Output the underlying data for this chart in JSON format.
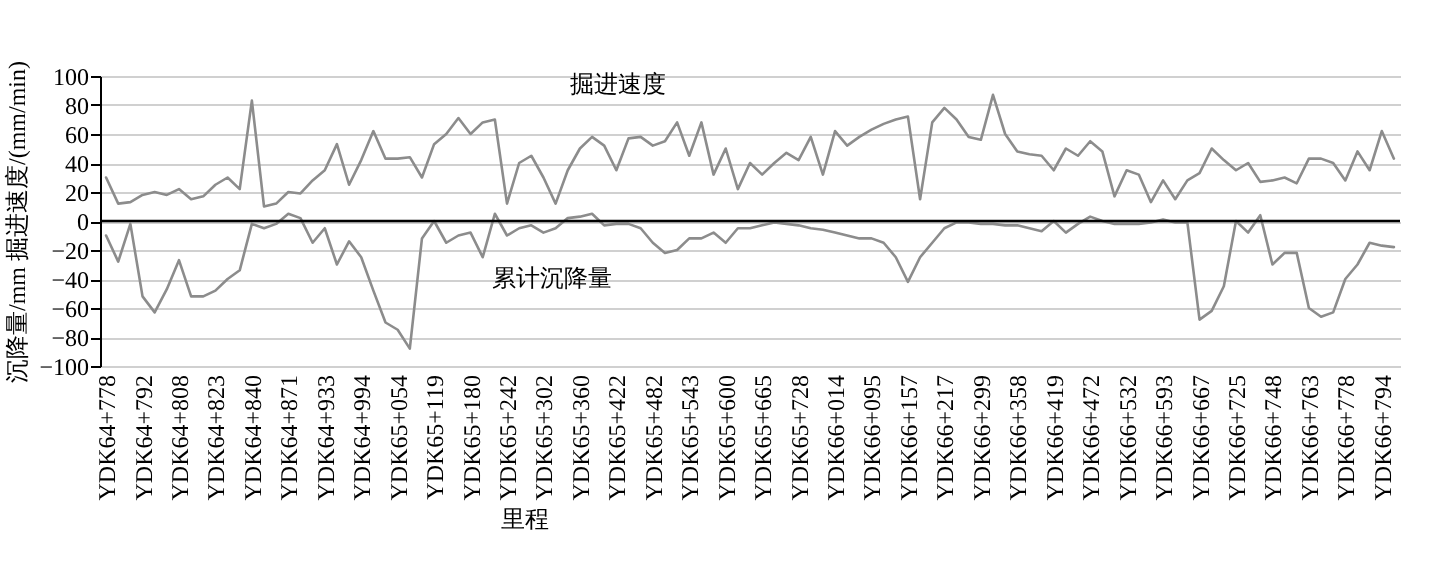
{
  "chart_data": {
    "type": "line",
    "xlabel": "里程",
    "ylabel": "沉降量/mm  掘进速度/(mm/min)",
    "categories": [
      "YDK64+778",
      null,
      null,
      "YDK64+792",
      null,
      null,
      "YDK64+808",
      null,
      null,
      "YDK64+823",
      null,
      null,
      "YDK64+840",
      null,
      null,
      "YDK64+871",
      null,
      null,
      "YDK64+933",
      null,
      null,
      "YDK64+994",
      null,
      null,
      "YDK65+054",
      null,
      null,
      "YDK65+119",
      null,
      null,
      "YDK65+180",
      null,
      null,
      "YDK65+242",
      null,
      null,
      "YDK65+302",
      null,
      null,
      "YDK65+360",
      null,
      null,
      "YDK65+422",
      null,
      null,
      "YDK65+482",
      null,
      null,
      "YDK65+543",
      null,
      null,
      "YDK65+600",
      null,
      null,
      "YDK65+665",
      null,
      null,
      "YDK65+728",
      null,
      null,
      "YDK66+014",
      null,
      null,
      "YDK66+095",
      null,
      null,
      "YDK66+157",
      null,
      null,
      "YDK66+217",
      null,
      null,
      "YDK66+299",
      null,
      null,
      "YDK66+358",
      null,
      null,
      "YDK66+419",
      null,
      null,
      "YDK66+472",
      null,
      null,
      "YDK66+532",
      null,
      null,
      "YDK66+593",
      null,
      null,
      "YDK66+667",
      null,
      null,
      "YDK66+725",
      null,
      null,
      "YDK66+748",
      null,
      null,
      "YDK66+763",
      null,
      null,
      "YDK66+778",
      null,
      null,
      "YDK66+794",
      null
    ],
    "series": [
      {
        "color": "#8c8c8c",
        "values": [
          30,
          12,
          13,
          18,
          20,
          18,
          22,
          15,
          17,
          25,
          30,
          22,
          83,
          10,
          12,
          20,
          19,
          28,
          35,
          53,
          25,
          42,
          62,
          43,
          43,
          44,
          30,
          53,
          60,
          71,
          60,
          68,
          70,
          12,
          40,
          45,
          30,
          12,
          35,
          50,
          58,
          52,
          35,
          57,
          58,
          52,
          55,
          68,
          45,
          68,
          32,
          50,
          22,
          40,
          32,
          40,
          47,
          42,
          58,
          32,
          62,
          52,
          58,
          63,
          67,
          70,
          72,
          15,
          68,
          78,
          70,
          58,
          56,
          87,
          60,
          48,
          46,
          45,
          35,
          50,
          45,
          55,
          48,
          17,
          35,
          32,
          13,
          28,
          15,
          28,
          33,
          50,
          42,
          35,
          40,
          27,
          28,
          30,
          26,
          43,
          43,
          40,
          28,
          48,
          35,
          62,
          43
        ]
      },
      {
        "color": "#8c8c8c",
        "values": [
          -10,
          -28,
          -2,
          -52,
          -63,
          -47,
          -27,
          -52,
          -52,
          -48,
          -40,
          -34,
          -2,
          -5,
          -2,
          5,
          2,
          -15,
          -5,
          -30,
          -14,
          -25,
          -48,
          -70,
          -75,
          -88,
          -12,
          0,
          -15,
          -10,
          -8,
          -25,
          5,
          -10,
          -5,
          -3,
          -8,
          -5,
          2,
          3,
          5,
          -3,
          -2,
          -2,
          -5,
          -15,
          -22,
          -20,
          -12,
          -12,
          -8,
          -15,
          -5,
          -5,
          -3,
          -1,
          -2,
          -3,
          -5,
          -6,
          -8,
          -10,
          -12,
          -12,
          -15,
          -25,
          -42,
          -25,
          -15,
          -5,
          -1,
          -1,
          -2,
          -2,
          -3,
          -3,
          -5,
          -7,
          0,
          -8,
          -2,
          3,
          0,
          -2,
          -2,
          -2,
          -1,
          1,
          -1,
          -1,
          -68,
          -62,
          -45,
          0,
          -8,
          4,
          -30,
          -22,
          -22,
          -60,
          -66,
          -63,
          -40,
          -30,
          -15,
          -17,
          -18
        ]
      }
    ],
    "annotations": [
      "掘进速度",
      "累计沉降量"
    ],
    "ylim": [
      -100,
      100
    ],
    "yticks": [
      -100,
      -80,
      -60,
      -40,
      -20,
      0,
      20,
      40,
      60,
      80,
      100
    ],
    "grid": "y",
    "marker": "none",
    "line_style": "solid"
  }
}
